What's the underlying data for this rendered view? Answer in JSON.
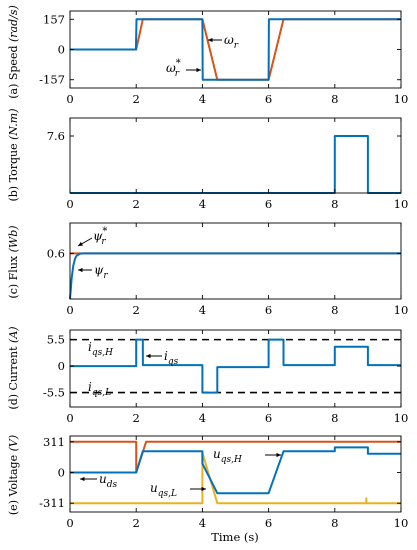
{
  "chart_data": [
    {
      "type": "line",
      "id": "speed",
      "ylabel_prefix": "(a)",
      "ylabel_text": "Speed",
      "ylabel_unit": "(rad/s)",
      "xlim": [
        0,
        10
      ],
      "ylim": [
        -200,
        200
      ],
      "xticks": [
        0,
        2,
        4,
        6,
        8,
        10
      ],
      "yticks": [
        157,
        0,
        -157
      ],
      "ytick_labels": [
        "157",
        "0",
        "-157"
      ],
      "series": [
        {
          "key": "omega_r_star",
          "color": "#D95319",
          "x": [
            0,
            2,
            2.2,
            4,
            4.45,
            6,
            6.45,
            10
          ],
          "y": [
            0,
            0,
            157,
            157,
            -157,
            -157,
            157,
            157
          ]
        },
        {
          "key": "omega_r",
          "color": "#0072BD",
          "x": [
            0,
            1.99,
            2.01,
            4,
            4.01,
            4.45,
            6,
            6.01,
            6.45,
            10
          ],
          "y": [
            0,
            0,
            157,
            157,
            -157,
            -157,
            -157,
            157,
            157,
            157
          ]
        }
      ],
      "annotations": [
        {
          "label": "ω",
          "sub": "r",
          "sup": ""
        },
        {
          "label": "ω",
          "sub": "r",
          "sup": "*"
        }
      ]
    },
    {
      "type": "line",
      "id": "torque",
      "ylabel_prefix": "(b)",
      "ylabel_text": "Torque",
      "ylabel_unit": "(N.m)",
      "xlim": [
        0,
        10
      ],
      "ylim": [
        0,
        10
      ],
      "xticks": [
        0,
        2,
        4,
        6,
        8,
        10
      ],
      "yticks": [
        7.6
      ],
      "ytick_labels": [
        "7.6"
      ],
      "series": [
        {
          "key": "torque",
          "color": "#0072BD",
          "x": [
            0,
            8,
            8,
            9,
            9,
            10
          ],
          "y": [
            0,
            0,
            7.6,
            7.6,
            0,
            0
          ]
        }
      ]
    },
    {
      "type": "line",
      "id": "flux",
      "ylabel_prefix": "(c)",
      "ylabel_text": "Flux",
      "ylabel_unit": "(Wb)",
      "xlim": [
        0,
        10
      ],
      "ylim": [
        0,
        1
      ],
      "xticks": [
        0,
        2,
        4,
        6,
        8,
        10
      ],
      "yticks": [
        0.6
      ],
      "ytick_labels": [
        "0.6"
      ],
      "series": [
        {
          "key": "psi_r_star",
          "color": "#D95319",
          "x": [
            0,
            0.001,
            10
          ],
          "y": [
            0.6,
            0.6,
            0.6
          ]
        },
        {
          "key": "psi_r",
          "color": "#0072BD",
          "x": [
            0,
            0.05,
            0.1,
            0.15,
            0.2,
            0.3,
            0.4,
            0.5,
            10
          ],
          "y": [
            0,
            0.28,
            0.44,
            0.53,
            0.57,
            0.595,
            0.6,
            0.6,
            0.6
          ]
        }
      ],
      "annotations": [
        {
          "label": "ψ",
          "sub": "r",
          "sup": "*"
        },
        {
          "label": "ψ",
          "sub": "r",
          "sup": ""
        }
      ]
    },
    {
      "type": "line",
      "id": "current",
      "ylabel_prefix": "(d)",
      "ylabel_text": "Current",
      "ylabel_unit": "(A)",
      "xlim": [
        0,
        10
      ],
      "ylim": [
        -8.5,
        7.5
      ],
      "xticks": [
        0,
        2,
        4,
        6,
        8,
        10
      ],
      "yticks": [
        5.5,
        0,
        -5.5
      ],
      "ytick_labels": [
        "5.5",
        "0",
        "-5.5"
      ],
      "limits": [
        5.5,
        -5.5
      ],
      "series": [
        {
          "key": "i_qs",
          "color": "#0072BD",
          "x": [
            0,
            2,
            2.001,
            2.2,
            2.201,
            4,
            4.001,
            4.45,
            4.451,
            6,
            6.001,
            6.45,
            6.451,
            8,
            8.001,
            9,
            9.001,
            10
          ],
          "y": [
            0,
            0,
            5.5,
            5.5,
            0.2,
            0.2,
            -5.5,
            -5.5,
            -0.2,
            -0.2,
            5.5,
            5.5,
            0.2,
            0.2,
            4.0,
            4.0,
            0.2,
            0.2
          ]
        }
      ],
      "annotations": [
        {
          "label": "i",
          "sub": "qs,H",
          "sup": ""
        },
        {
          "label": "i",
          "sub": "qs",
          "sup": ""
        },
        {
          "label": "i",
          "sub": "qs,L",
          "sup": ""
        }
      ]
    },
    {
      "type": "line",
      "id": "voltage",
      "ylabel_prefix": "(e)",
      "ylabel_text": "Voltage",
      "ylabel_unit": "(V)",
      "xlim": [
        0,
        10
      ],
      "ylim": [
        -400,
        370
      ],
      "xticks": [
        0,
        2,
        4,
        6,
        8,
        10
      ],
      "xtick_labels": [
        "0",
        "2",
        "4",
        "6",
        "8",
        "10"
      ],
      "yticks": [
        311,
        0,
        -311
      ],
      "ytick_labels": [
        "311",
        "0",
        "-311"
      ],
      "xlabel": "Time (s)",
      "series": [
        {
          "key": "u_qs_H",
          "color": "#D95319",
          "x": [
            0,
            2,
            2.001,
            2.3,
            10
          ],
          "y": [
            311,
            311,
            0,
            311,
            311
          ]
        },
        {
          "key": "u_qs_L",
          "color": "#EDB120",
          "x": [
            0,
            4,
            4.001,
            4.45,
            4.451,
            8.95,
            8.951,
            8.96,
            9.0,
            10
          ],
          "y": [
            -311,
            -311,
            200,
            -311,
            -311,
            -311,
            -260,
            -311,
            -311,
            -311
          ]
        },
        {
          "key": "u_ds",
          "color": "#0072BD",
          "x": [
            0,
            2,
            2.001,
            2.2,
            4,
            4.001,
            4.45,
            6,
            6.001,
            6.45,
            8,
            8.001,
            9,
            9.001,
            10
          ],
          "y": [
            0,
            0,
            0,
            215,
            215,
            90,
            -210,
            -210,
            -210,
            215,
            215,
            255,
            255,
            190,
            190
          ]
        }
      ],
      "annotations": [
        {
          "label": "u",
          "sub": "ds",
          "sup": ""
        },
        {
          "label": "u",
          "sub": "qs,H",
          "sup": ""
        },
        {
          "label": "u",
          "sub": "qs,L",
          "sup": ""
        }
      ]
    }
  ]
}
